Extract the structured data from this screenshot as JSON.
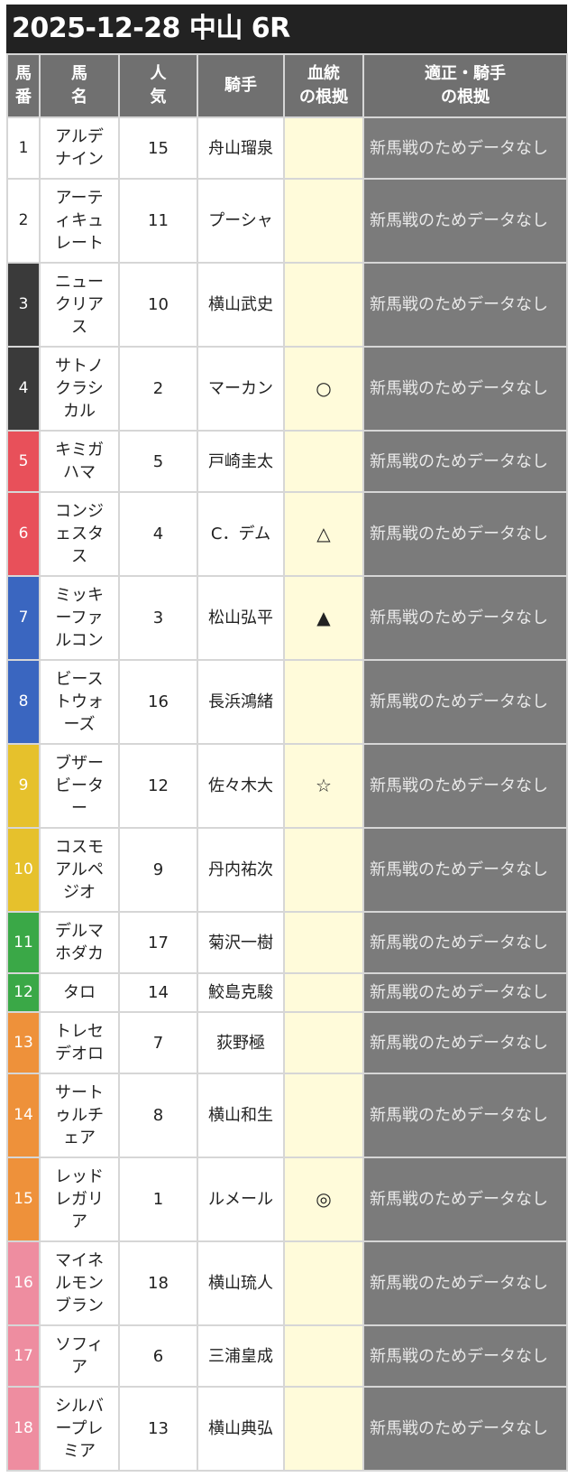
{
  "title": "2025-12-28 中山 6R",
  "headers": [
    "馬番",
    "馬名",
    "人気",
    "騎手",
    "血統の根拠",
    "適正・騎手の根拠"
  ],
  "header_lines": {
    "num": [
      "馬",
      "番"
    ],
    "name": [
      "馬",
      "名"
    ],
    "pop": [
      "人",
      "気"
    ],
    "jockey": [
      "騎手"
    ],
    "blood": [
      "血統",
      "の根拠"
    ],
    "reason": [
      "適正・騎手",
      "の根拠"
    ]
  },
  "frame_colors": {
    "1": "#ffffff",
    "2": "#3a3a3a",
    "3": "#e8505a",
    "4": "#3a66c0",
    "5": "#e6c12c",
    "6": "#3aa847",
    "7": "#ee913a",
    "8": "#ee8da0"
  },
  "rows": [
    {
      "num": "1",
      "frame": "1",
      "name": "アルデナイン",
      "pop": "15",
      "jockey": "舟山瑠泉",
      "blood": "",
      "reason": "新馬戦のためデータなし"
    },
    {
      "num": "2",
      "frame": "1",
      "name": "アーティキュレート",
      "pop": "11",
      "jockey": "プーシャ",
      "blood": "",
      "reason": "新馬戦のためデータなし"
    },
    {
      "num": "3",
      "frame": "2",
      "name": "ニュークリアス",
      "pop": "10",
      "jockey": "横山武史",
      "blood": "",
      "reason": "新馬戦のためデータなし"
    },
    {
      "num": "4",
      "frame": "2",
      "name": "サトノクラシカル",
      "pop": "2",
      "jockey": "マーカン",
      "blood": "○",
      "reason": "新馬戦のためデータなし"
    },
    {
      "num": "5",
      "frame": "3",
      "name": "キミガハマ",
      "pop": "5",
      "jockey": "戸崎圭太",
      "blood": "",
      "reason": "新馬戦のためデータなし"
    },
    {
      "num": "6",
      "frame": "3",
      "name": "コンジェスタス",
      "pop": "4",
      "jockey": "C．デム",
      "blood": "△",
      "reason": "新馬戦のためデータなし"
    },
    {
      "num": "7",
      "frame": "4",
      "name": "ミッキーファルコン",
      "pop": "3",
      "jockey": "松山弘平",
      "blood": "▲",
      "reason": "新馬戦のためデータなし"
    },
    {
      "num": "8",
      "frame": "4",
      "name": "ビーストウォーズ",
      "pop": "16",
      "jockey": "長浜鴻緒",
      "blood": "",
      "reason": "新馬戦のためデータなし"
    },
    {
      "num": "9",
      "frame": "5",
      "name": "ブザービーター",
      "pop": "12",
      "jockey": "佐々木大",
      "blood": "☆",
      "reason": "新馬戦のためデータなし"
    },
    {
      "num": "10",
      "frame": "5",
      "name": "コスモアルペジオ",
      "pop": "9",
      "jockey": "丹内祐次",
      "blood": "",
      "reason": "新馬戦のためデータなし"
    },
    {
      "num": "11",
      "frame": "6",
      "name": "デルマホダカ",
      "pop": "17",
      "jockey": "菊沢一樹",
      "blood": "",
      "reason": "新馬戦のためデータなし"
    },
    {
      "num": "12",
      "frame": "6",
      "name": "タロ",
      "pop": "14",
      "jockey": "鮫島克駿",
      "blood": "",
      "reason": "新馬戦のためデータなし"
    },
    {
      "num": "13",
      "frame": "7",
      "name": "トレセデオロ",
      "pop": "7",
      "jockey": "荻野極",
      "blood": "",
      "reason": "新馬戦のためデータなし"
    },
    {
      "num": "14",
      "frame": "7",
      "name": "サートゥルチェア",
      "pop": "8",
      "jockey": "横山和生",
      "blood": "",
      "reason": "新馬戦のためデータなし"
    },
    {
      "num": "15",
      "frame": "7",
      "name": "レッドレガリア",
      "pop": "1",
      "jockey": "ルメール",
      "blood": "◎",
      "reason": "新馬戦のためデータなし"
    },
    {
      "num": "16",
      "frame": "8",
      "name": "マイネルモンブラン",
      "pop": "18",
      "jockey": "横山琉人",
      "blood": "",
      "reason": "新馬戦のためデータなし"
    },
    {
      "num": "17",
      "frame": "8",
      "name": "ソフィア",
      "pop": "6",
      "jockey": "三浦皇成",
      "blood": "",
      "reason": "新馬戦のためデータなし"
    },
    {
      "num": "18",
      "frame": "8",
      "name": "シルバープレミア",
      "pop": "13",
      "jockey": "横山典弘",
      "blood": "",
      "reason": "新馬戦のためデータなし"
    }
  ]
}
